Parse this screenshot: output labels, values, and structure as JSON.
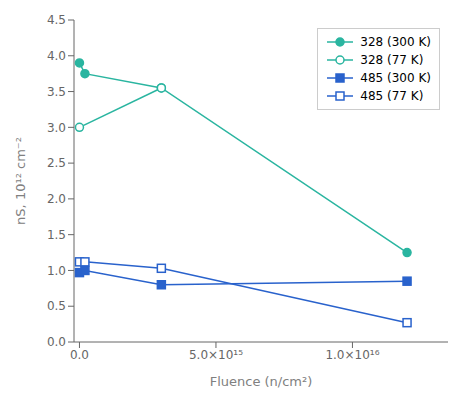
{
  "chart_data": {
    "type": "line",
    "xlabel": "Fluence (n/cm²)",
    "ylabel": "nS, 10¹² cm⁻²",
    "xlim": [
      -200000000000000.0,
      1.35e+16
    ],
    "ylim": [
      0.0,
      4.5
    ],
    "xticks": [
      {
        "value": 0.0,
        "label": "0.0"
      },
      {
        "value": 5000000000000000.0,
        "label": "5.0×10¹⁵"
      },
      {
        "value": 1e+16,
        "label": "1.0×10¹⁶"
      }
    ],
    "yticks": [
      {
        "value": 0.0,
        "label": "0.0"
      },
      0.5,
      {
        "value": 1.0,
        "label": "1.0"
      },
      1.5,
      {
        "value": 2.0,
        "label": "2.0"
      },
      2.5,
      {
        "value": 3.0,
        "label": "3.0"
      },
      3.5,
      {
        "value": 4.0,
        "label": "4.0"
      },
      4.5
    ],
    "legend": "upper right",
    "grid": false,
    "series": [
      {
        "name": "328 (300 K)",
        "color": "#2ab5a0",
        "marker": "circle",
        "line_style": "solid",
        "x": [
          0,
          200000000000000.0,
          3000000000000000.0,
          1.2e+16
        ],
        "values": [
          3.9,
          3.75,
          3.55,
          1.25
        ]
      },
      {
        "name": "328 (77 K)",
        "color": "#2ab5a0",
        "marker": "open-circle",
        "line_style": "solid",
        "x": [
          0,
          3000000000000000.0
        ],
        "values": [
          3.0,
          3.55
        ]
      },
      {
        "name": "485 (300 K)",
        "color": "#2962cc",
        "marker": "square",
        "line_style": "solid",
        "x": [
          0,
          200000000000000.0,
          3000000000000000.0,
          1.2e+16
        ],
        "values": [
          0.97,
          1.0,
          0.8,
          0.85
        ]
      },
      {
        "name": "485 (77 K)",
        "color": "#2962cc",
        "marker": "open-square",
        "line_style": "solid",
        "x": [
          0,
          200000000000000.0,
          3000000000000000.0,
          1.2e+16
        ],
        "values": [
          1.12,
          1.12,
          1.03,
          0.27
        ]
      }
    ]
  }
}
